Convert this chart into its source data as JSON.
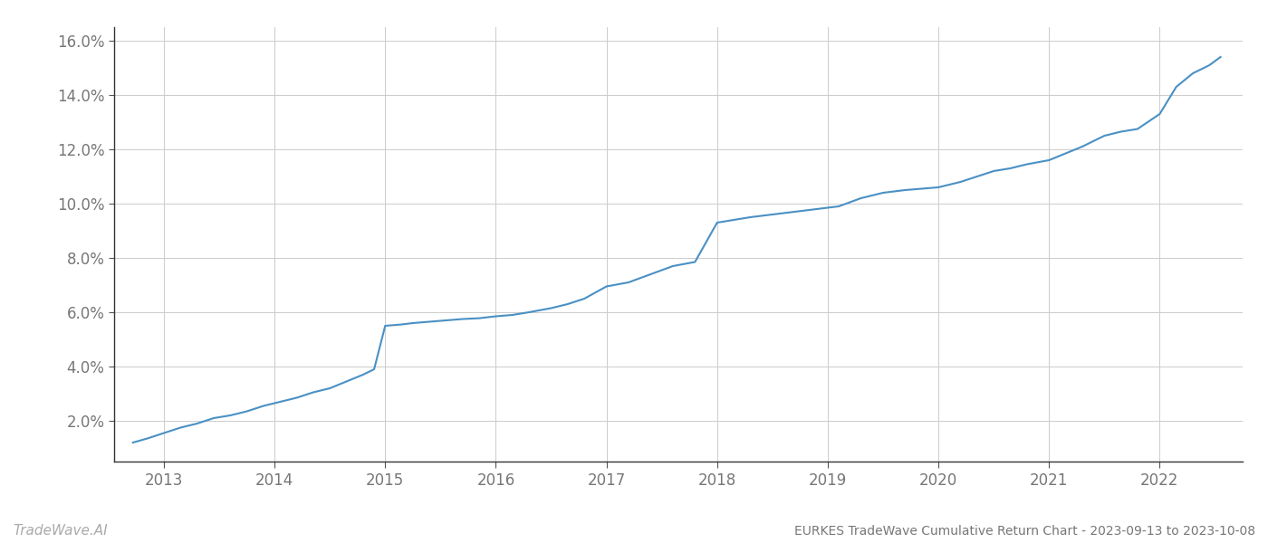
{
  "title": "EURKES TradeWave Cumulative Return Chart - 2023-09-13 to 2023-10-08",
  "watermark": "TradeWave.AI",
  "line_color": "#4a90c4",
  "background_color": "#ffffff",
  "grid_color": "#cccccc",
  "x_years": [
    2013,
    2014,
    2015,
    2016,
    2017,
    2018,
    2019,
    2020,
    2021,
    2022
  ],
  "x_data": [
    2012.72,
    2012.85,
    2013.0,
    2013.15,
    2013.3,
    2013.45,
    2013.6,
    2013.75,
    2013.9,
    2014.05,
    2014.2,
    2014.35,
    2014.5,
    2014.65,
    2014.8,
    2014.9,
    2015.0,
    2015.15,
    2015.25,
    2015.4,
    2015.55,
    2015.7,
    2015.85,
    2016.0,
    2016.15,
    2016.3,
    2016.5,
    2016.65,
    2016.8,
    2017.0,
    2017.2,
    2017.4,
    2017.6,
    2017.8,
    2018.0,
    2018.15,
    2018.3,
    2018.5,
    2018.7,
    2018.9,
    2019.1,
    2019.3,
    2019.5,
    2019.7,
    2019.85,
    2020.0,
    2020.2,
    2020.35,
    2020.5,
    2020.65,
    2020.8,
    2021.0,
    2021.15,
    2021.3,
    2021.5,
    2021.65,
    2021.8,
    2022.0,
    2022.15,
    2022.3,
    2022.45,
    2022.55
  ],
  "y_data": [
    1.2,
    1.35,
    1.55,
    1.75,
    1.9,
    2.1,
    2.2,
    2.35,
    2.55,
    2.7,
    2.85,
    3.05,
    3.2,
    3.45,
    3.7,
    3.9,
    5.5,
    5.55,
    5.6,
    5.65,
    5.7,
    5.75,
    5.78,
    5.85,
    5.9,
    6.0,
    6.15,
    6.3,
    6.5,
    6.95,
    7.1,
    7.4,
    7.7,
    7.85,
    9.3,
    9.4,
    9.5,
    9.6,
    9.7,
    9.8,
    9.9,
    10.2,
    10.4,
    10.5,
    10.55,
    10.6,
    10.8,
    11.0,
    11.2,
    11.3,
    11.45,
    11.6,
    11.85,
    12.1,
    12.5,
    12.65,
    12.75,
    13.3,
    14.3,
    14.8,
    15.1,
    15.4
  ],
  "ylim": [
    0.5,
    16.5
  ],
  "yticks": [
    2.0,
    4.0,
    6.0,
    8.0,
    10.0,
    12.0,
    14.0,
    16.0
  ],
  "xlim": [
    2012.55,
    2022.75
  ],
  "title_fontsize": 10,
  "watermark_fontsize": 11,
  "tick_fontsize": 12,
  "line_width": 1.5
}
